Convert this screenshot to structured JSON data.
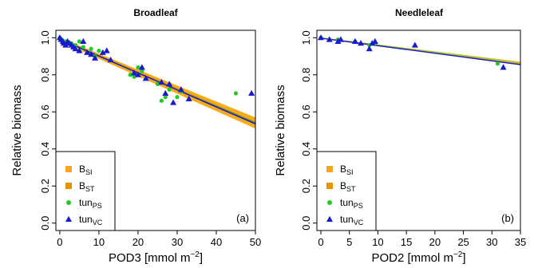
{
  "chart_data": [
    {
      "type": "scatter",
      "title": "Broadleaf",
      "xlabel": "POD3 [mmol m",
      "xlabel_sup": "−2",
      "xlabel_end": "]",
      "ylabel": "Relative biomass",
      "panel_label": "(a)",
      "xlim": [
        -1,
        50
      ],
      "ylim": [
        -0.04,
        1.04
      ],
      "xticks": [
        0,
        10,
        20,
        30,
        40,
        50
      ],
      "yticks": [
        0.0,
        0.2,
        0.4,
        0.6,
        0.8,
        1.0
      ],
      "grid": false,
      "legend_position": "bottom-left",
      "legend": [
        {
          "base": "B",
          "sub": "SI",
          "marker": "square",
          "color": "#f5a623"
        },
        {
          "base": "B",
          "sub": "ST",
          "marker": "square",
          "color": "#e69500"
        },
        {
          "base": "tun",
          "sub": "PS",
          "marker": "circle",
          "color": "#22cc22"
        },
        {
          "base": "tun",
          "sub": "VC",
          "marker": "triangle",
          "color": "#1a1acd"
        }
      ],
      "series": [
        {
          "kind": "band",
          "color": "#f5a300",
          "x": [
            0,
            50
          ],
          "ylow": [
            0.98,
            0.51
          ],
          "yhigh": [
            1.0,
            0.57
          ]
        },
        {
          "kind": "line",
          "color": "#e69500",
          "x": [
            0,
            50
          ],
          "y": [
            0.995,
            0.545
          ]
        },
        {
          "kind": "line",
          "color": "#2e8b57",
          "x": [
            0,
            50
          ],
          "y": [
            0.99,
            0.54
          ]
        },
        {
          "kind": "line",
          "color": "#1a1acd",
          "x": [
            0,
            50
          ],
          "y": [
            0.993,
            0.535
          ]
        },
        {
          "kind": "points",
          "marker": "circle",
          "color": "#22cc22",
          "x": [
            0,
            0.5,
            1,
            1.5,
            2,
            3,
            4,
            5,
            6,
            8,
            9,
            10,
            18,
            19,
            20,
            21,
            25,
            26,
            27,
            28,
            30,
            31,
            45
          ],
          "y": [
            1.0,
            0.99,
            0.98,
            0.98,
            0.97,
            0.97,
            0.96,
            0.98,
            0.95,
            0.94,
            0.9,
            0.93,
            0.8,
            0.79,
            0.84,
            0.82,
            0.75,
            0.66,
            0.68,
            0.72,
            0.68,
            0.71,
            0.7
          ]
        },
        {
          "kind": "points",
          "marker": "triangle",
          "color": "#1a1acd",
          "x": [
            0,
            0.3,
            0.8,
            1,
            1.5,
            2,
            2.5,
            3,
            3.5,
            4,
            5,
            6,
            7,
            8,
            9,
            11,
            12,
            13,
            19,
            20,
            21,
            22,
            26,
            27,
            28,
            29,
            31,
            33,
            49
          ],
          "y": [
            1.0,
            0.99,
            0.98,
            0.97,
            0.96,
            0.98,
            0.97,
            0.96,
            0.95,
            0.94,
            0.93,
            0.98,
            0.92,
            0.91,
            0.89,
            0.92,
            0.93,
            0.88,
            0.81,
            0.8,
            0.84,
            0.78,
            0.76,
            0.7,
            0.75,
            0.65,
            0.72,
            0.67,
            0.7
          ]
        }
      ]
    },
    {
      "type": "scatter",
      "title": "Needleleaf",
      "xlabel": "POD2 [mmol m",
      "xlabel_sup": "−2",
      "xlabel_end": "]",
      "ylabel": "Relative biomass",
      "panel_label": "(b)",
      "xlim": [
        -0.7,
        35
      ],
      "ylim": [
        -0.04,
        1.04
      ],
      "xticks": [
        0,
        5,
        10,
        15,
        20,
        25,
        30,
        35
      ],
      "yticks": [
        0.0,
        0.2,
        0.4,
        0.6,
        0.8,
        1.0
      ],
      "grid": false,
      "legend_position": "bottom-left",
      "legend": [
        {
          "base": "B",
          "sub": "SI",
          "marker": "square",
          "color": "#f5a623"
        },
        {
          "base": "B",
          "sub": "ST",
          "marker": "square",
          "color": "#e69500"
        },
        {
          "base": "tun",
          "sub": "PS",
          "marker": "circle",
          "color": "#22cc22"
        },
        {
          "base": "tun",
          "sub": "VC",
          "marker": "triangle",
          "color": "#1a1acd"
        }
      ],
      "series": [
        {
          "kind": "band",
          "color": "#f5a300",
          "x": [
            0,
            35
          ],
          "ylow": [
            0.995,
            0.855
          ],
          "yhigh": [
            1.002,
            0.87
          ]
        },
        {
          "kind": "line",
          "color": "#9acd32",
          "x": [
            0,
            35
          ],
          "y": [
            0.998,
            0.865
          ]
        },
        {
          "kind": "line",
          "color": "#1a1acd",
          "x": [
            0,
            35
          ],
          "y": [
            0.998,
            0.855
          ]
        },
        {
          "kind": "points",
          "marker": "circle",
          "color": "#22cc22",
          "x": [
            0,
            1.5,
            3,
            6,
            8.5,
            9.5,
            31
          ],
          "y": [
            1.0,
            0.99,
            0.99,
            0.98,
            0.96,
            0.97,
            0.86
          ]
        },
        {
          "kind": "points",
          "marker": "triangle",
          "color": "#1a1acd",
          "x": [
            0,
            1.5,
            3,
            3.5,
            6,
            7,
            8.5,
            9,
            9.5,
            16.5,
            32
          ],
          "y": [
            1.0,
            0.99,
            0.98,
            0.99,
            0.98,
            0.97,
            0.94,
            0.97,
            0.98,
            0.96,
            0.84
          ]
        }
      ]
    }
  ]
}
